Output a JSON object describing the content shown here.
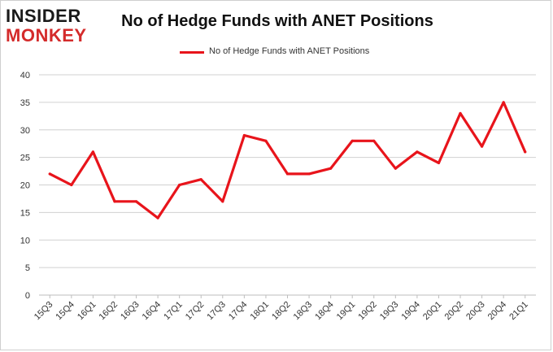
{
  "logo": {
    "line1": "INSIDER",
    "line2": "MONKEY"
  },
  "chart_data": {
    "type": "line",
    "title": "No of Hedge Funds with ANET Positions",
    "xlabel": "",
    "ylabel": "",
    "categories": [
      "15Q3",
      "15Q4",
      "16Q1",
      "16Q2",
      "16Q3",
      "16Q4",
      "17Q1",
      "17Q2",
      "17Q3",
      "17Q4",
      "18Q1",
      "18Q2",
      "18Q3",
      "18Q4",
      "19Q1",
      "19Q2",
      "19Q3",
      "19Q4",
      "20Q1",
      "20Q2",
      "20Q3",
      "20Q4",
      "21Q1"
    ],
    "series": [
      {
        "name": "No of Hedge Funds with ANET Positions",
        "color": "#e8141b",
        "values": [
          22,
          20,
          26,
          17,
          17,
          14,
          20,
          21,
          17,
          29,
          28,
          22,
          22,
          23,
          28,
          28,
          23,
          26,
          24,
          33,
          27,
          35,
          26
        ]
      }
    ],
    "ylim": [
      0,
      40
    ],
    "yticks": [
      0,
      5,
      10,
      15,
      20,
      25,
      30,
      35,
      40
    ],
    "grid": true,
    "legend_position": "top-center"
  }
}
